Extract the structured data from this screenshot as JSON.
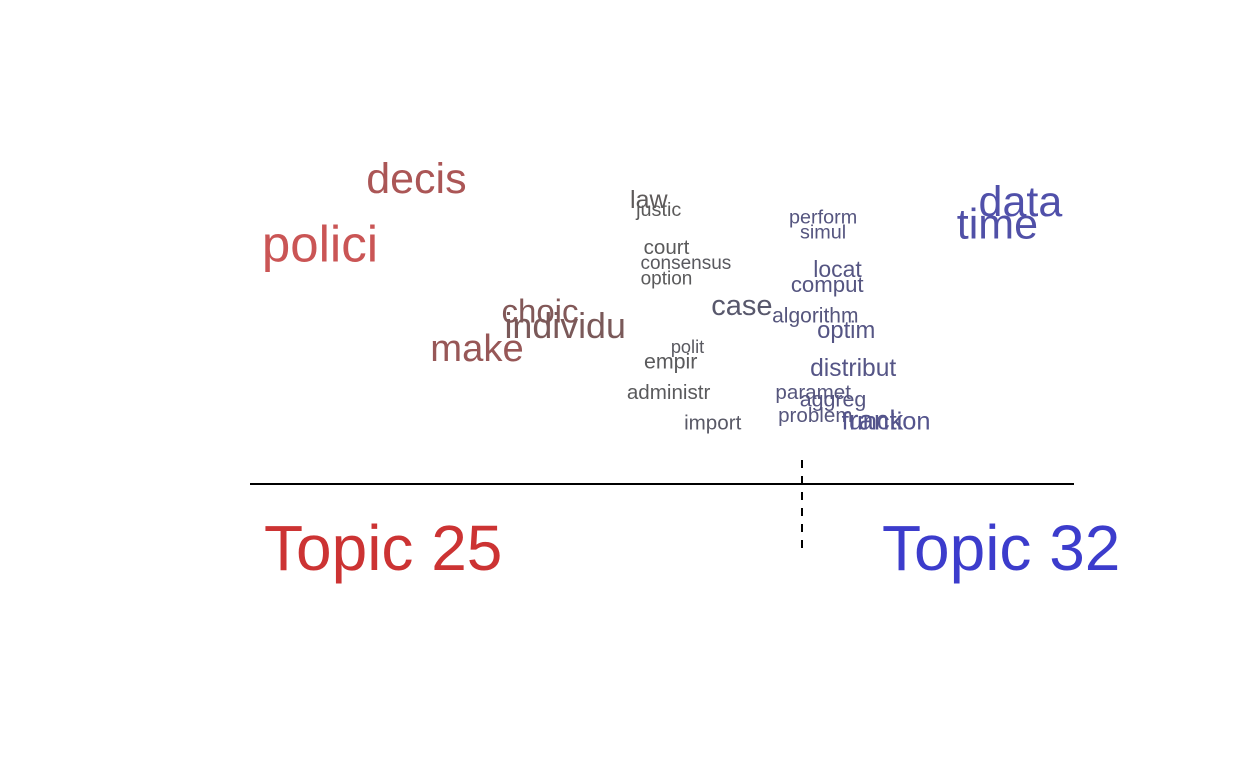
{
  "chart_data": {
    "type": "scatter",
    "title": "",
    "xlabel": "",
    "ylabel": "",
    "xlim": [
      -1,
      1
    ],
    "divider_x": 0.354,
    "topics": [
      {
        "label": "Topic 25",
        "color": "#cc3333"
      },
      {
        "label": "Topic 32",
        "color": "#3c3ccc"
      }
    ],
    "words": [
      {
        "word": "polici",
        "x": -0.83,
        "y": 0.88,
        "weight": 1.0
      },
      {
        "word": "decis",
        "x": -0.596,
        "y": 0.97,
        "weight": 0.8
      },
      {
        "word": "make",
        "x": -0.449,
        "y": 0.75,
        "weight": 0.68
      },
      {
        "word": "choic",
        "x": -0.296,
        "y": 0.8,
        "weight": 0.55
      },
      {
        "word": "individu",
        "x": -0.235,
        "y": 0.78,
        "weight": 0.62
      },
      {
        "word": "law",
        "x": -0.032,
        "y": 0.95,
        "weight": 0.35
      },
      {
        "word": "justic",
        "x": -0.008,
        "y": 0.94,
        "weight": 0.22
      },
      {
        "word": "court",
        "x": 0.011,
        "y": 0.89,
        "weight": 0.24
      },
      {
        "word": "consensus",
        "x": 0.058,
        "y": 0.87,
        "weight": 0.2
      },
      {
        "word": "option",
        "x": 0.011,
        "y": 0.85,
        "weight": 0.2
      },
      {
        "word": "polit",
        "x": 0.062,
        "y": 0.76,
        "weight": 0.18
      },
      {
        "word": "empir",
        "x": 0.021,
        "y": 0.74,
        "weight": 0.26
      },
      {
        "word": "administr",
        "x": 0.016,
        "y": 0.7,
        "weight": 0.24
      },
      {
        "word": "import",
        "x": 0.123,
        "y": 0.66,
        "weight": 0.24
      },
      {
        "word": "case",
        "x": 0.194,
        "y": 0.81,
        "weight": 0.45
      },
      {
        "word": "perform",
        "x": 0.391,
        "y": 0.93,
        "weight": 0.22
      },
      {
        "word": "simul",
        "x": 0.391,
        "y": 0.91,
        "weight": 0.22
      },
      {
        "word": "locat",
        "x": 0.426,
        "y": 0.86,
        "weight": 0.3
      },
      {
        "word": "comput",
        "x": 0.401,
        "y": 0.84,
        "weight": 0.28
      },
      {
        "word": "algorithm",
        "x": 0.372,
        "y": 0.8,
        "weight": 0.25
      },
      {
        "word": "optim",
        "x": 0.447,
        "y": 0.78,
        "weight": 0.32
      },
      {
        "word": "distribut",
        "x": 0.464,
        "y": 0.73,
        "weight": 0.34
      },
      {
        "word": "paramet",
        "x": 0.367,
        "y": 0.7,
        "weight": 0.24
      },
      {
        "word": "aggreg",
        "x": 0.415,
        "y": 0.69,
        "weight": 0.26
      },
      {
        "word": "problem",
        "x": 0.372,
        "y": 0.67,
        "weight": 0.24
      },
      {
        "word": "rank",
        "x": 0.52,
        "y": 0.66,
        "weight": 0.42
      },
      {
        "word": "function",
        "x": 0.544,
        "y": 0.66,
        "weight": 0.36
      },
      {
        "word": "data",
        "x": 0.87,
        "y": 0.94,
        "weight": 0.8
      },
      {
        "word": "time",
        "x": 0.814,
        "y": 0.91,
        "weight": 0.8
      }
    ]
  }
}
